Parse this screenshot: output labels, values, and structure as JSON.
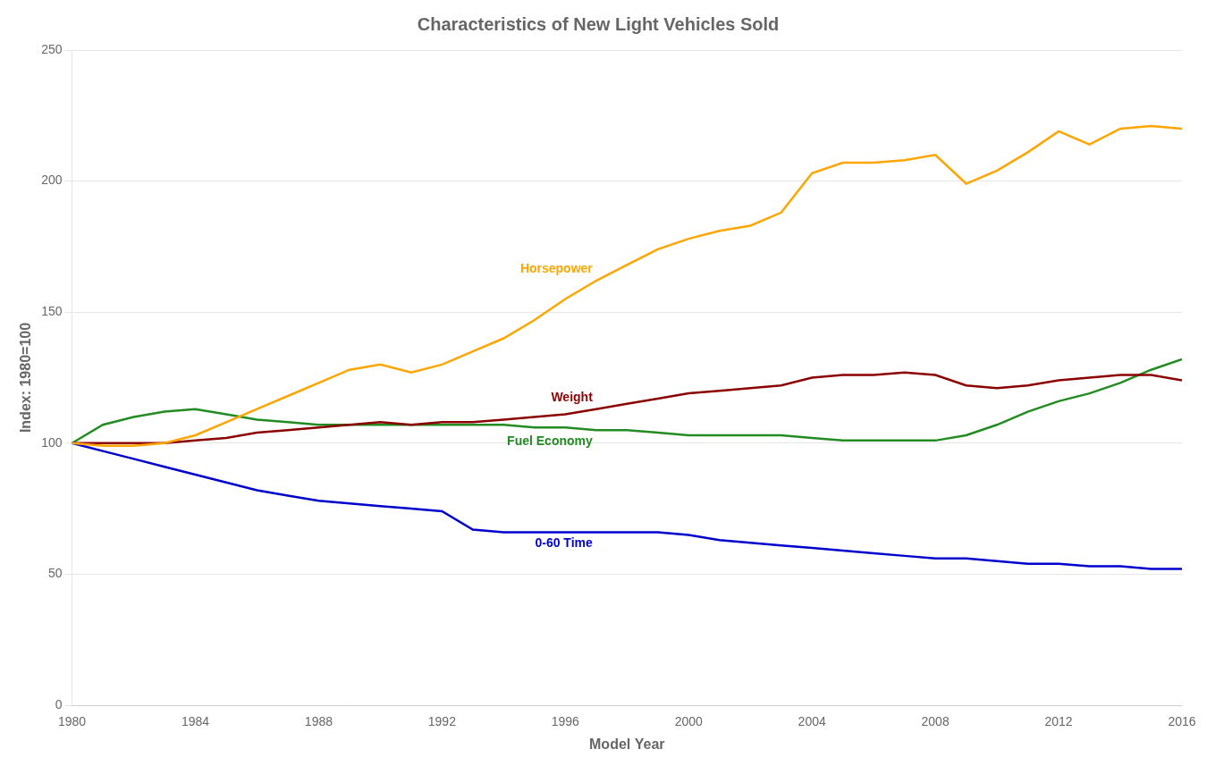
{
  "chart_data": {
    "type": "line",
    "title": "Characteristics of New Light Vehicles Sold",
    "x_label": "Model Year",
    "y_label": "Index: 1980=100",
    "x": [
      1980,
      1981,
      1982,
      1983,
      1984,
      1985,
      1986,
      1987,
      1988,
      1989,
      1990,
      1991,
      1992,
      1993,
      1994,
      1995,
      1996,
      1997,
      1998,
      1999,
      2000,
      2001,
      2002,
      2003,
      2004,
      2005,
      2006,
      2007,
      2008,
      2009,
      2010,
      2011,
      2012,
      2013,
      2014,
      2015,
      2016
    ],
    "series": [
      {
        "name": "Horsepower",
        "color": "#FFA500",
        "values": [
          100,
          99,
          99,
          100,
          103,
          108,
          113,
          118,
          123,
          128,
          130,
          127,
          130,
          135,
          140,
          147,
          155,
          162,
          168,
          174,
          178,
          181,
          183,
          188,
          203,
          207,
          207,
          208,
          210,
          199,
          204,
          211,
          219,
          214,
          220,
          221,
          220
        ]
      },
      {
        "name": "Weight",
        "color": "#8B0000",
        "values": [
          100,
          100,
          100,
          100,
          101,
          102,
          104,
          105,
          106,
          107,
          108,
          107,
          108,
          108,
          109,
          110,
          111,
          113,
          115,
          117,
          119,
          120,
          121,
          122,
          125,
          126,
          126,
          127,
          126,
          122,
          121,
          122,
          124,
          125,
          126,
          126,
          124
        ]
      },
      {
        "name": "Fuel Economy",
        "color": "#228B22",
        "values": [
          100,
          107,
          110,
          112,
          113,
          111,
          109,
          108,
          107,
          107,
          107,
          107,
          107,
          107,
          107,
          106,
          106,
          105,
          105,
          104,
          103,
          103,
          103,
          103,
          102,
          101,
          101,
          101,
          101,
          103,
          107,
          112,
          116,
          119,
          123,
          128,
          132
        ]
      },
      {
        "name": "0-60 Time",
        "color": "#0000CD",
        "values": [
          100,
          97,
          94,
          91,
          88,
          85,
          82,
          80,
          78,
          77,
          76,
          75,
          74,
          67,
          66,
          66,
          66,
          66,
          66,
          66,
          65,
          63,
          62,
          61,
          60,
          59,
          58,
          57,
          56,
          56,
          55,
          54,
          54,
          53,
          53,
          52,
          52
        ]
      }
    ],
    "xlim": [
      1980,
      2016
    ],
    "xticks": [
      1980,
      1984,
      1988,
      1992,
      1996,
      2000,
      2004,
      2008,
      2012,
      2016
    ],
    "ylim": [
      0,
      250
    ],
    "yticks": [
      0,
      50,
      100,
      150,
      200,
      250
    ],
    "grid": "y"
  }
}
